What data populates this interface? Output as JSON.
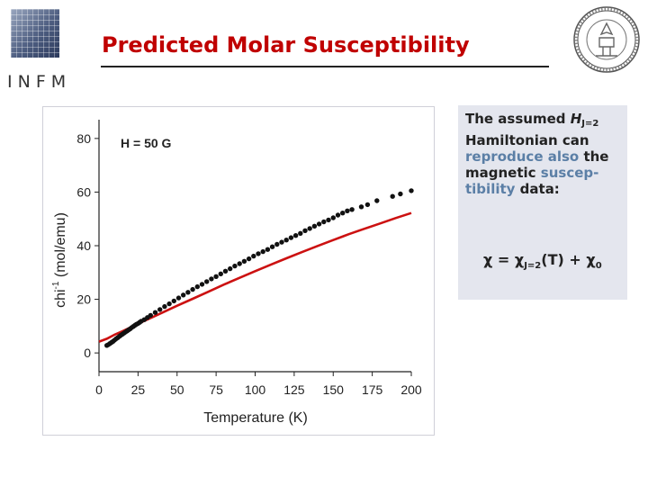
{
  "slide": {
    "title": "Predicted Molar Susceptibility",
    "logo_text": "INFM",
    "logo_icon": "infm-grid-logo-icon",
    "seal_icon": "university-seal-icon"
  },
  "side_panel": {
    "line1_prefix": "The assumed ",
    "h_symbol": "H",
    "h_sub": "J=2",
    "line2": "Hamiltonian can",
    "blue_1": "reproduce also",
    "mid_1": " the",
    "black_2": "magnetic ",
    "blue_2": "suscep-",
    "blue_3": "tibility",
    "mid_3": " data:",
    "formula_chi": "χ",
    "formula_eq": " = ",
    "formula_chi2": "χ",
    "formula_sub1": "J=2",
    "formula_mid": "(T) + ",
    "formula_chi3": "χ",
    "formula_sub2": "0"
  },
  "chart_data": {
    "type": "scatter",
    "annotation": "H = 50 G",
    "xlabel": "Temperature (K)",
    "ylabel_main": "chi",
    "ylabel_sup": "-1",
    "ylabel_unit": " (mol/emu)",
    "xlim": [
      0,
      200
    ],
    "ylim": [
      -7,
      87
    ],
    "xticks": [
      0,
      25,
      50,
      75,
      100,
      125,
      150,
      175,
      200
    ],
    "yticks": [
      0,
      20,
      40,
      60,
      80
    ],
    "colors": {
      "points": "#111111",
      "fit": "#cc1111"
    },
    "series": [
      {
        "kind": "points",
        "x": [
          5,
          6,
          7,
          8,
          9,
          10,
          11,
          12,
          13,
          14,
          15,
          16,
          17,
          18,
          19,
          20,
          21,
          22,
          23,
          24,
          25,
          26,
          27,
          29,
          31,
          33,
          36,
          39,
          42,
          45,
          48,
          51,
          54,
          57,
          60,
          63,
          66,
          69,
          72,
          75,
          78,
          81,
          84,
          87,
          90,
          93,
          96,
          99,
          102,
          105,
          108,
          111,
          114,
          117,
          120,
          123,
          126,
          129,
          132,
          135,
          138,
          141,
          144,
          147,
          150,
          153,
          156,
          159,
          162,
          168,
          172,
          178,
          188,
          193,
          200
        ],
        "y": [
          2.8,
          3.1,
          3.5,
          3.9,
          4.3,
          4.8,
          5.3,
          5.7,
          6.2,
          6.6,
          7.0,
          7.4,
          7.8,
          8.2,
          8.6,
          9.0,
          9.5,
          9.9,
          10.3,
          10.7,
          11.0,
          11.4,
          11.8,
          12.4,
          13.2,
          14.0,
          15.1,
          16.2,
          17.3,
          18.3,
          19.4,
          20.5,
          21.6,
          22.6,
          23.7,
          24.7,
          25.6,
          26.6,
          27.6,
          28.5,
          29.5,
          30.5,
          31.4,
          32.4,
          33.3,
          34.2,
          35.1,
          36.1,
          37.0,
          37.8,
          38.6,
          39.6,
          40.5,
          41.3,
          42.1,
          43.0,
          43.8,
          44.6,
          45.6,
          46.4,
          47.3,
          48.1,
          48.9,
          49.6,
          50.4,
          51.4,
          52.2,
          53.0,
          53.5,
          54.5,
          55.3,
          56.8,
          58.4,
          59.3,
          60.5
        ]
      },
      {
        "kind": "fit",
        "x": [
          0,
          5,
          10,
          15,
          20,
          25,
          30,
          40,
          50,
          60,
          70,
          80,
          90,
          100,
          110,
          120,
          130,
          140,
          150,
          160,
          170,
          180,
          190,
          200
        ],
        "y": [
          4.2,
          5.3,
          6.8,
          8.1,
          9.5,
          10.9,
          12.2,
          14.9,
          17.6,
          20.2,
          22.8,
          25.5,
          28.0,
          30.5,
          32.9,
          35.3,
          37.6,
          39.9,
          42.1,
          44.3,
          46.3,
          48.3,
          50.3,
          52.2
        ]
      }
    ]
  }
}
